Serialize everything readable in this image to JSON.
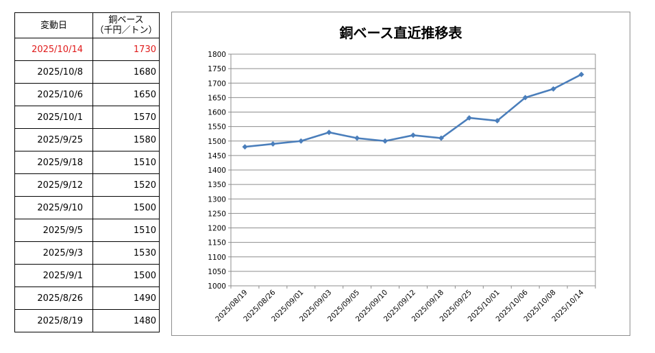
{
  "table": {
    "header_date": "変動日",
    "header_value_line1": "銅ベース",
    "header_value_line2": "（千円／トン）",
    "rows": [
      {
        "date": "2025/10/14",
        "value": "1730"
      },
      {
        "date": "2025/10/8",
        "value": "1680"
      },
      {
        "date": "2025/10/6",
        "value": "1650"
      },
      {
        "date": "2025/10/1",
        "value": "1570"
      },
      {
        "date": "2025/9/25",
        "value": "1580"
      },
      {
        "date": "2025/9/18",
        "value": "1510"
      },
      {
        "date": "2025/9/12",
        "value": "1520"
      },
      {
        "date": "2025/9/10",
        "value": "1500"
      },
      {
        "date": "2025/9/5",
        "value": "1510"
      },
      {
        "date": "2025/9/3",
        "value": "1530"
      },
      {
        "date": "2025/9/1",
        "value": "1500"
      },
      {
        "date": "2025/8/26",
        "value": "1490"
      },
      {
        "date": "2025/8/19",
        "value": "1480"
      }
    ],
    "latest_color": "#e01a1a"
  },
  "chart_data": {
    "type": "line",
    "title": "銅ベース直近推移表",
    "xlabel": "",
    "ylabel": "",
    "categories": [
      "2025/08/19",
      "2025/08/26",
      "2025/09/01",
      "2025/09/03",
      "2025/09/05",
      "2025/09/10",
      "2025/09/12",
      "2025/09/18",
      "2025/09/25",
      "2025/10/01",
      "2025/10/06",
      "2025/10/08",
      "2025/10/14"
    ],
    "series": [
      {
        "values": [
          1480,
          1490,
          1500,
          1530,
          1510,
          1500,
          1520,
          1510,
          1580,
          1570,
          1650,
          1680,
          1730
        ],
        "color": "#4a7ebb",
        "marker": "diamond"
      }
    ],
    "ylim": [
      1000,
      1800
    ],
    "yticks": [
      1000,
      1050,
      1100,
      1150,
      1200,
      1250,
      1300,
      1350,
      1400,
      1450,
      1500,
      1550,
      1600,
      1650,
      1700,
      1750,
      1800
    ],
    "grid": true,
    "legend": "none"
  }
}
